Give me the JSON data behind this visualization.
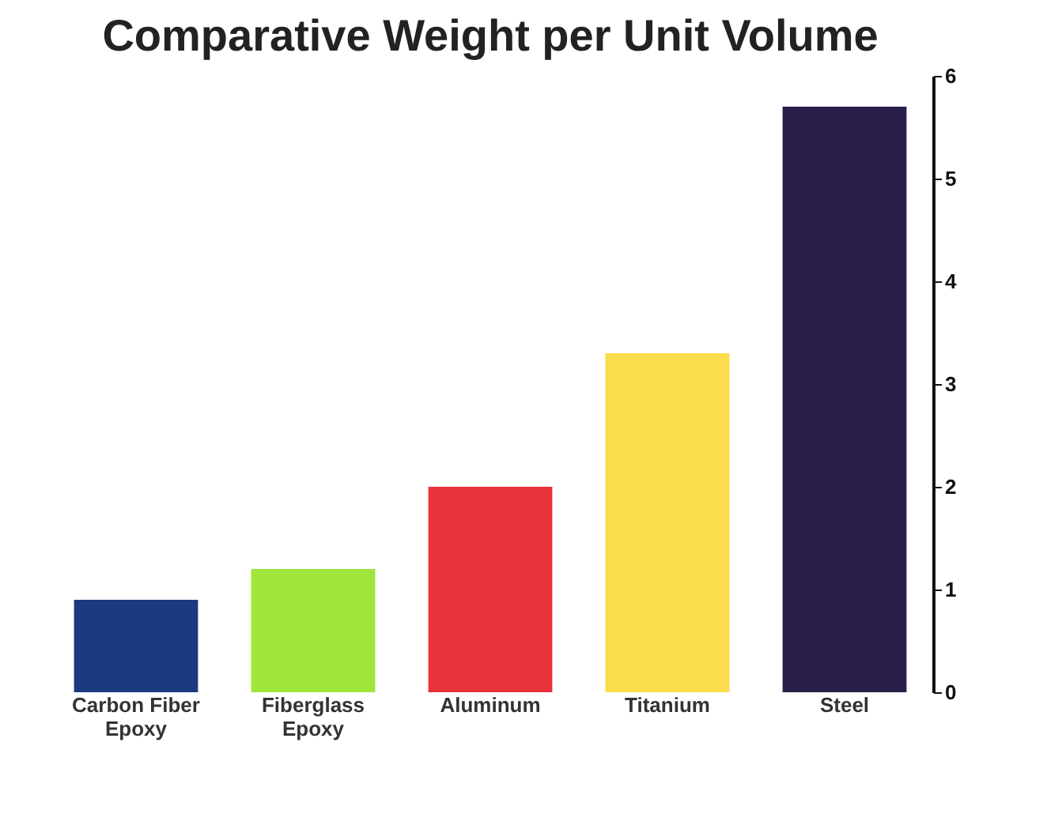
{
  "chart_data": {
    "type": "bar",
    "title": "Comparative Weight per Unit Volume",
    "categories": [
      "Carbon Fiber Epoxy",
      "Fiberglass Epoxy",
      "Aluminum",
      "Titanium",
      "Steel"
    ],
    "values": [
      0.9,
      1.2,
      2.0,
      3.3,
      5.7
    ],
    "colors": [
      "#1c3a80",
      "#9ee639",
      "#e8323c",
      "#fbdc4a",
      "#2a1f4a"
    ],
    "ylim": [
      0,
      6
    ],
    "yticks": [
      0,
      1,
      2,
      3,
      4,
      5,
      6
    ],
    "grid": false
  }
}
